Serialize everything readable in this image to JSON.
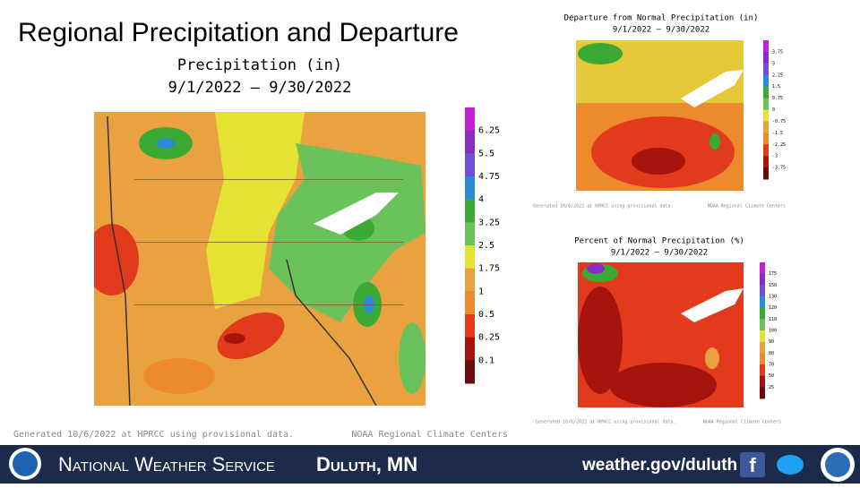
{
  "title": "Regional Precipitation and Departure",
  "main_map": {
    "title": "Precipitation (in)",
    "dates": "9/1/2022 – 9/30/2022",
    "legend_labels": [
      "6.25",
      "5.5",
      "4.75",
      "4",
      "3.25",
      "2.5",
      "1.75",
      "1",
      "0.5",
      "0.25",
      "0.1"
    ],
    "credit_left": "Generated 10/6/2022 at HPRCC using provisional data.",
    "credit_right": "NOAA Regional Climate Centers"
  },
  "departure_map": {
    "title": "Departure from Normal Precipitation (in)",
    "dates": "9/1/2022 – 9/30/2022",
    "legend_labels": [
      "3.75",
      "3",
      "2.25",
      "1.5",
      "0.75",
      "0",
      "-0.75",
      "-1.5",
      "-2.25",
      "-3",
      "-3.75"
    ],
    "credit_left": "Generated 10/6/2022 at HPRCC using provisional data.",
    "credit_right": "NOAA Regional Climate Centers"
  },
  "percent_map": {
    "title": "Percent of Normal Precipitation (%)",
    "dates": "9/1/2022 – 9/30/2022",
    "legend_labels": [
      "175",
      "150",
      "130",
      "120",
      "110",
      "100",
      "90",
      "80",
      "70",
      "50",
      "25"
    ],
    "credit_left": "Generated 10/6/2022 at HPRCC using provisional data.",
    "credit_right": "NOAA Regional Climate Centers"
  },
  "footer": {
    "agency": "National Weather Service",
    "office": "Duluth, MN",
    "url": "weather.gov/duluth"
  }
}
